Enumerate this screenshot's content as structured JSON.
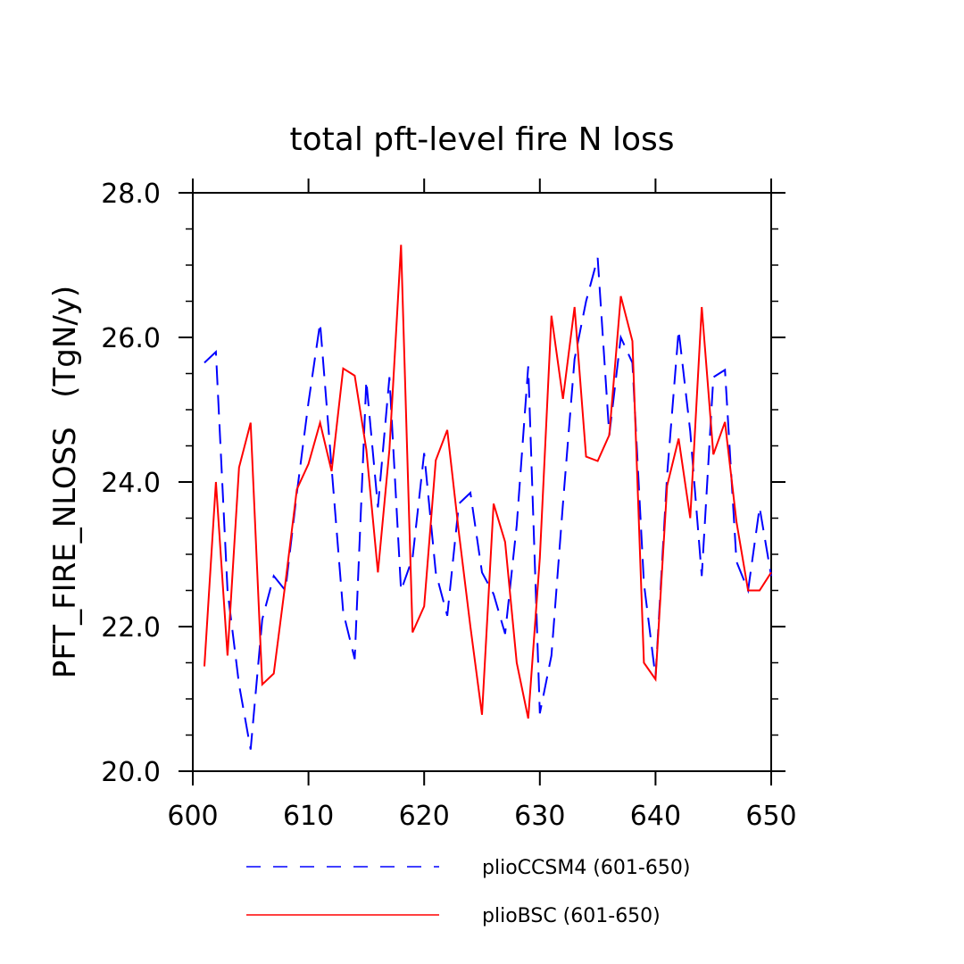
{
  "chart_data": {
    "type": "line",
    "title": "total pft-level fire N loss",
    "xlabel": "",
    "ylabel": "PFT_FIRE_NLOSS   (TgN/y)",
    "xlim": [
      600,
      650
    ],
    "ylim": [
      20.0,
      28.0
    ],
    "x_ticks": [
      600,
      610,
      620,
      630,
      640,
      650
    ],
    "x_tick_labels": [
      "600",
      "610",
      "620",
      "630",
      "640",
      "650"
    ],
    "y_ticks": [
      20.0,
      22.0,
      24.0,
      26.0,
      28.0
    ],
    "y_tick_labels": [
      "20.0",
      "22.0",
      "24.0",
      "26.0",
      "28.0"
    ],
    "grid": false,
    "legend_position": "bottom",
    "x": [
      601,
      602,
      603,
      604,
      605,
      606,
      607,
      608,
      609,
      610,
      611,
      612,
      613,
      614,
      615,
      616,
      617,
      618,
      619,
      620,
      621,
      622,
      623,
      624,
      625,
      626,
      627,
      628,
      629,
      630,
      631,
      632,
      633,
      634,
      635,
      636,
      637,
      638,
      639,
      640,
      641,
      642,
      643,
      644,
      645,
      646,
      647,
      648,
      649,
      650
    ],
    "series": [
      {
        "name": "plioCCSM4 (601-650)",
        "color": "#0000ff",
        "style": "dashed",
        "values": [
          25.65,
          25.8,
          22.5,
          21.2,
          20.3,
          22.1,
          22.7,
          22.5,
          23.85,
          25.1,
          26.2,
          24.2,
          22.2,
          21.55,
          25.4,
          23.65,
          25.45,
          22.5,
          22.95,
          24.4,
          22.75,
          22.15,
          23.7,
          23.85,
          22.75,
          22.45,
          21.9,
          23.4,
          25.6,
          20.8,
          21.6,
          23.7,
          25.7,
          26.5,
          27.1,
          24.65,
          26.0,
          25.65,
          22.6,
          21.3,
          24.1,
          26.1,
          24.7,
          22.7,
          25.45,
          25.55,
          22.9,
          22.5,
          23.65,
          22.7
        ]
      },
      {
        "name": "plioBSC (601-650)",
        "color": "#ff0000",
        "style": "solid",
        "values": [
          21.45,
          24.0,
          21.6,
          24.2,
          24.82,
          21.2,
          21.35,
          22.6,
          23.9,
          24.25,
          24.82,
          24.15,
          25.57,
          25.47,
          24.45,
          22.75,
          24.45,
          27.28,
          21.92,
          22.28,
          24.3,
          24.72,
          23.3,
          22.0,
          20.78,
          23.7,
          23.17,
          21.5,
          20.73,
          22.95,
          26.3,
          25.15,
          26.42,
          24.35,
          24.29,
          24.65,
          26.57,
          25.95,
          21.5,
          21.27,
          23.95,
          24.6,
          23.5,
          26.42,
          24.38,
          24.83,
          23.45,
          22.5,
          22.5,
          22.75
        ]
      }
    ]
  }
}
